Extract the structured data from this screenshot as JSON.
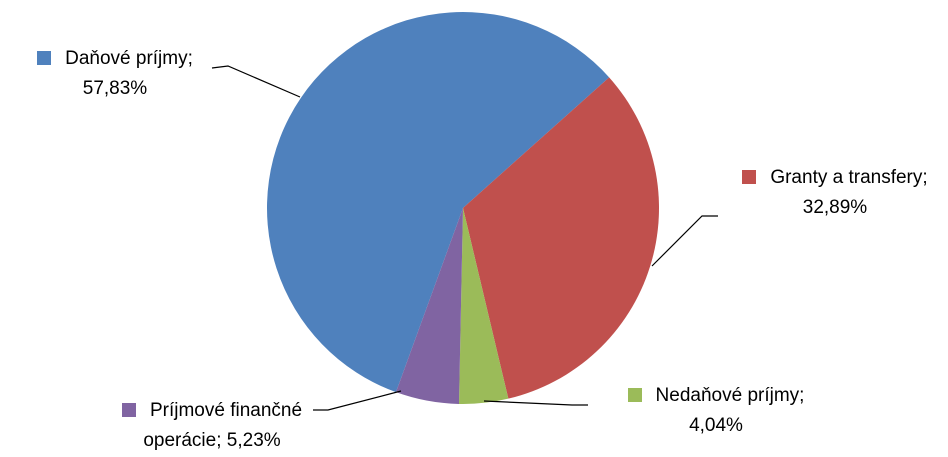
{
  "chart_data": {
    "type": "pie",
    "categories": [
      "Daňové príjmy",
      "Granty a transfery",
      "Nedaňové príjmy",
      "Príjmové finančné operácie"
    ],
    "values": [
      57.83,
      32.89,
      4.04,
      5.23
    ],
    "value_labels": [
      "57,83%",
      "32,89%",
      "4,04%",
      "5,23%"
    ],
    "label_separator": ";",
    "colors": [
      "#4f81bd",
      "#c0504d",
      "#9bbb59",
      "#8064a2"
    ]
  }
}
